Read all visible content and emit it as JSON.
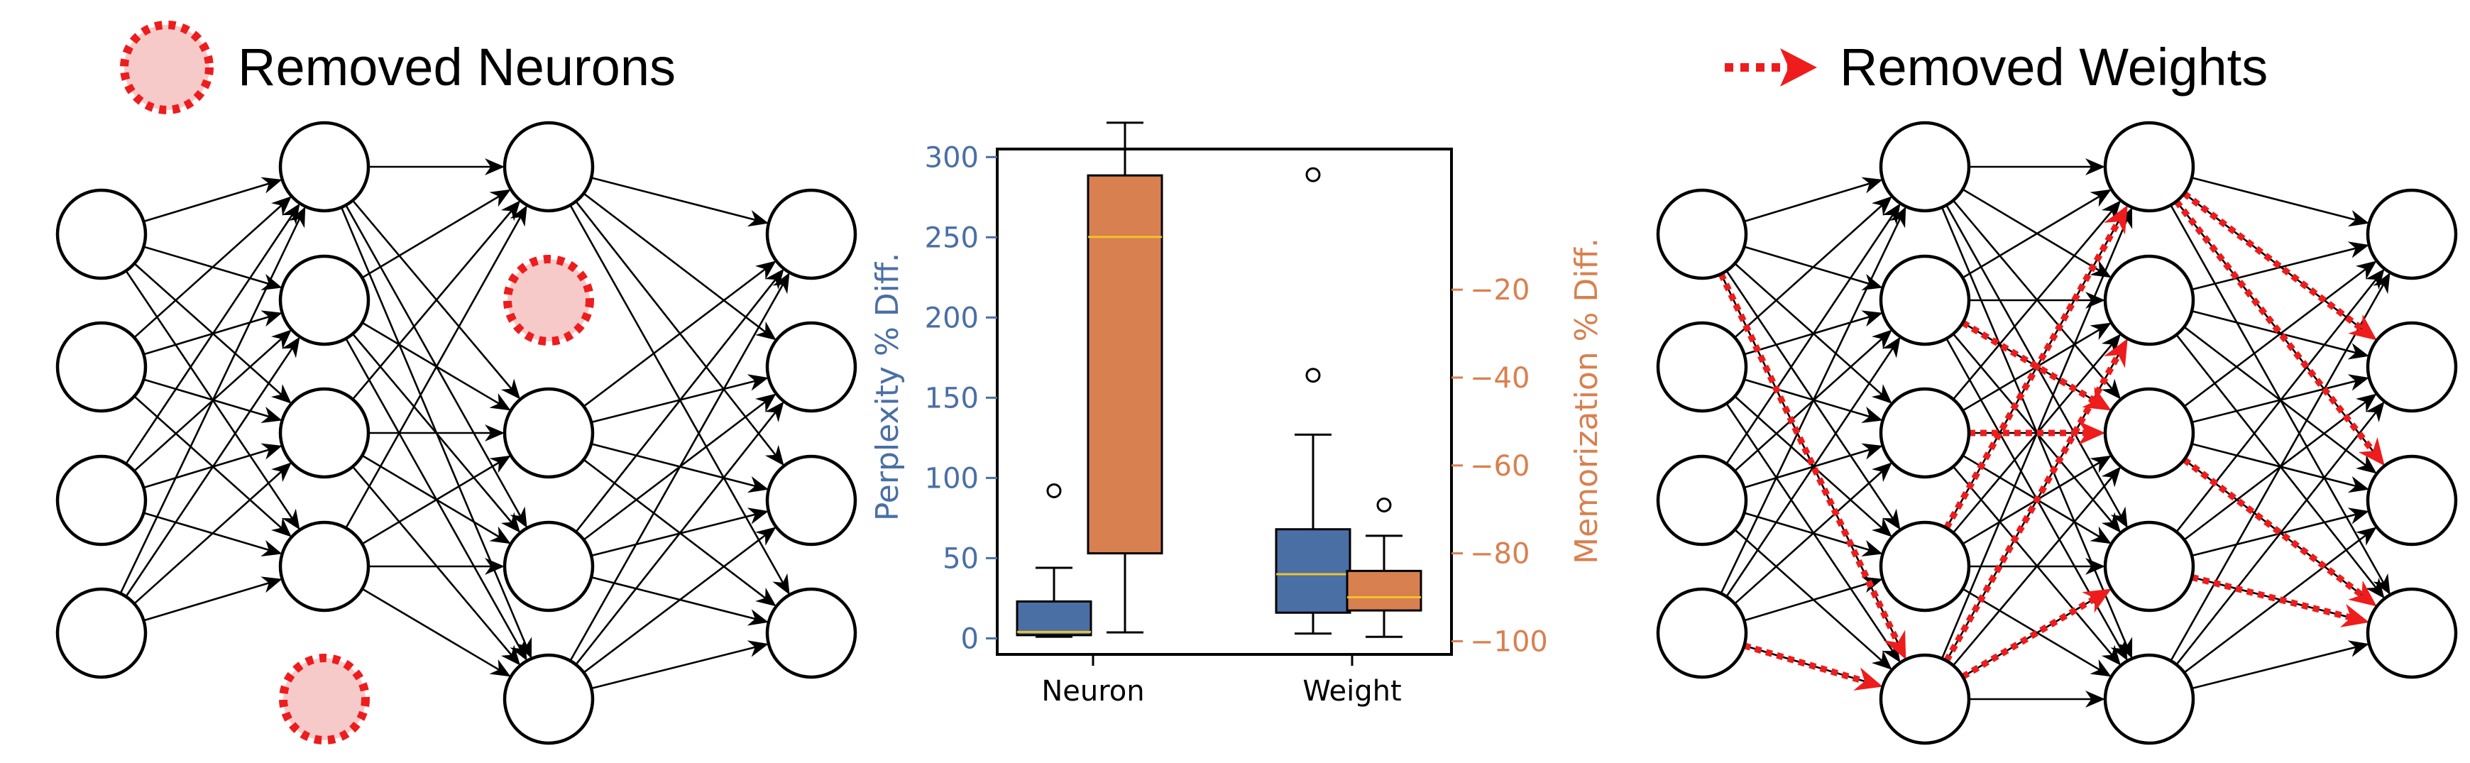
{
  "legend_neurons": {
    "label": "Removed Neurons",
    "marker_icon": "dotted-red-circle-icon"
  },
  "legend_weights": {
    "label": "Removed Weights",
    "marker_icon": "dotted-red-arrow-icon"
  },
  "colors": {
    "removed": "#ee1c1c",
    "removed_fill": "#f7caca",
    "perplexity": "#4a6fa5",
    "memorization": "#d8804f",
    "median": "#f2c12e",
    "edge": "#000000"
  },
  "chart_data": {
    "type": "box",
    "categories": [
      "Neuron",
      "Weight"
    ],
    "y_left": {
      "label": "Perplexity % Diff.",
      "ticks": [
        0,
        50,
        100,
        150,
        200,
        250,
        300
      ],
      "range": [
        -10,
        305
      ]
    },
    "y_right": {
      "label": "Memorization % Diff.",
      "ticks": [
        -20,
        -40,
        -60,
        -80,
        -100
      ],
      "range": [
        -103,
        12
      ]
    },
    "series": [
      {
        "name": "Perplexity % Diff.",
        "axis": "left",
        "boxes": [
          {
            "category": "Neuron",
            "whisker_low": 1,
            "q1": 2,
            "median": 4,
            "q3": 23,
            "whisker_high": 44,
            "outliers": [
              92
            ]
          },
          {
            "category": "Weight",
            "whisker_low": 3,
            "q1": 16,
            "median": 40,
            "q3": 68,
            "whisker_high": 127,
            "outliers": [
              164,
              289
            ]
          }
        ]
      },
      {
        "name": "Memorization % Diff.",
        "axis": "right",
        "boxes": [
          {
            "category": "Neuron",
            "whisker_low": -98,
            "q1": -80,
            "median": -8,
            "q3": 6,
            "whisker_high": 18,
            "outliers": []
          },
          {
            "category": "Weight",
            "whisker_low": -99,
            "q1": -93,
            "median": -90,
            "q3": -84,
            "whisker_high": -76,
            "outliers": [
              -69
            ]
          }
        ]
      }
    ]
  }
}
